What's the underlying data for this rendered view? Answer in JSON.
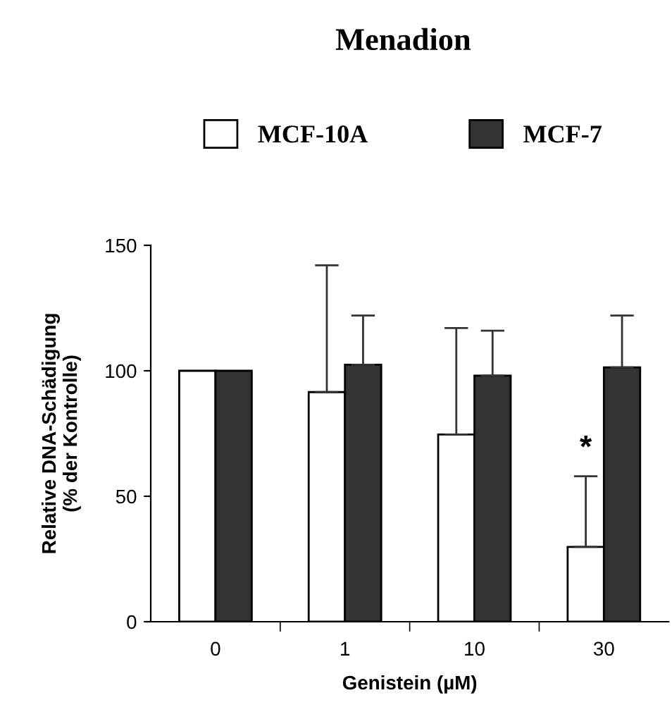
{
  "chart_data": {
    "type": "bar",
    "title": "Menadion",
    "xlabel": "Genistein (µM)",
    "ylabel": "Relative DNA-Schädigung\n(% der Kontrolle)",
    "categories": [
      "0",
      "1",
      "10",
      "30"
    ],
    "series": [
      {
        "name": "MCF-10A",
        "color": "#ffffff",
        "values": [
          100,
          91.5,
          74.6,
          29.8
        ],
        "errors": [
          null,
          [
            91.5,
            142
          ],
          [
            74.6,
            117
          ],
          [
            29.8,
            58
          ]
        ]
      },
      {
        "name": "MCF-7",
        "color": "#333333",
        "values": [
          100,
          102.4,
          98.1,
          101.4
        ],
        "errors": [
          null,
          [
            102.4,
            122
          ],
          [
            98.1,
            116
          ],
          [
            101.4,
            122
          ]
        ]
      }
    ],
    "ylim": [
      0,
      150
    ],
    "yticks": [
      0,
      50,
      100,
      150
    ],
    "grid": false,
    "legend": "top",
    "annotations": [
      {
        "text": "*",
        "x": "30",
        "y": 63
      }
    ]
  }
}
